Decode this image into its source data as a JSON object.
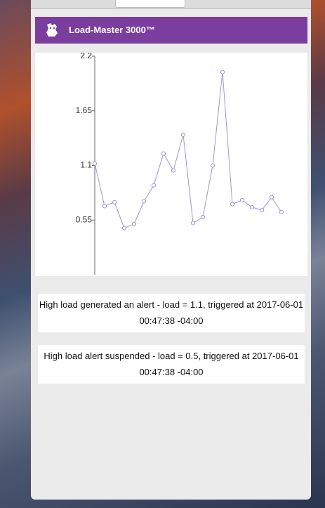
{
  "header": {
    "title": "Load-Master 3000™"
  },
  "chart_data": {
    "type": "line",
    "series": [
      {
        "color": "#9d94dc",
        "values": [
          1.12,
          0.69,
          0.73,
          0.47,
          0.51,
          0.74,
          0.9,
          1.22,
          1.05,
          1.41,
          0.52,
          0.58,
          1.1,
          2.04,
          0.71,
          0.75,
          0.68,
          0.65,
          0.78,
          0.63
        ]
      }
    ],
    "ylim": [
      0,
      2.2
    ],
    "yticks": [
      0.55,
      1.1,
      1.65,
      2.2
    ]
  },
  "alerts": [
    "High load generated an alert - load = 1.1, triggered at 2017-06-01 00:47:38 -04:00",
    "High load alert suspended - load = 0.5, triggered at 2017-06-01 00:47:38 -04:00"
  ]
}
